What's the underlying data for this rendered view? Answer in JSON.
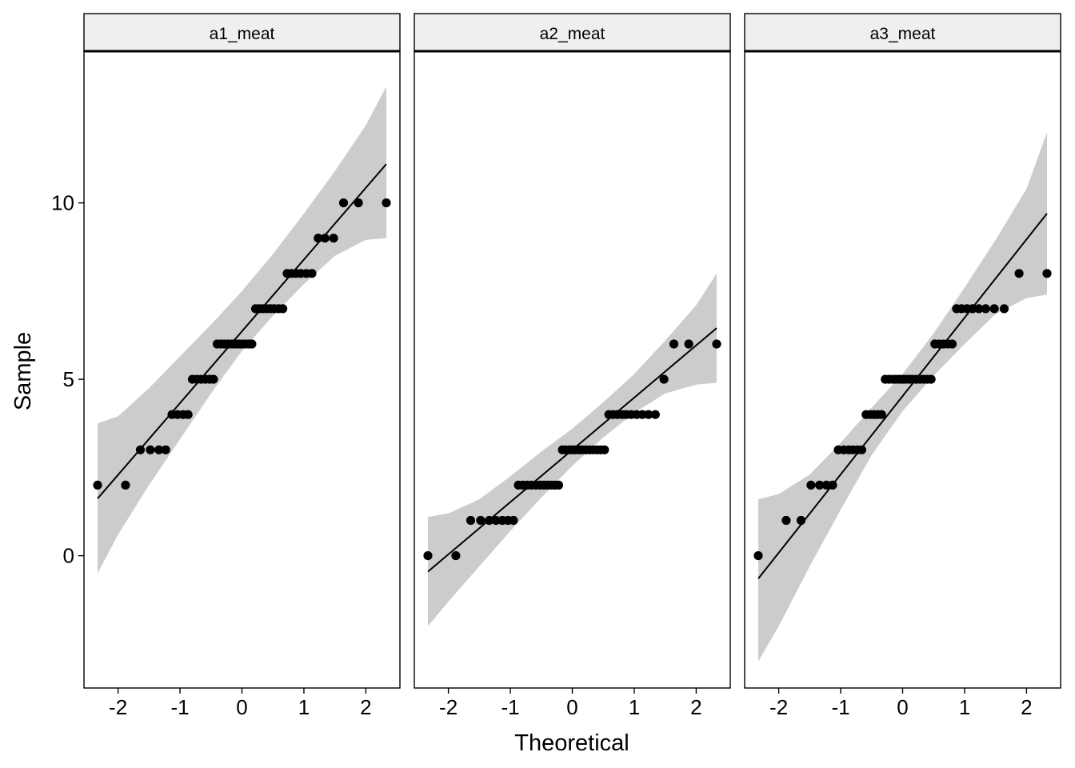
{
  "chart_data": {
    "type": "scatter",
    "subtype": "qq-plot-faceted",
    "xlabel": "Theoretical",
    "ylabel": "Sample",
    "xlim": [
      -2.55,
      2.55
    ],
    "ylim": [
      -3.75,
      14.3
    ],
    "x_ticks": [
      -2,
      -1,
      0,
      1,
      2
    ],
    "y_ticks": [
      0,
      5,
      10
    ],
    "grid": false,
    "colors": {
      "points": "#000000",
      "line": "#000000",
      "band": "#cccccc",
      "strip": "#efefef"
    },
    "panels": [
      {
        "label": "a1_meat",
        "line": {
          "x": [
            -2.33,
            2.33
          ],
          "y": [
            1.62,
            11.1
          ]
        },
        "band": {
          "x": [
            -2.33,
            -2.0,
            -1.5,
            -1.0,
            -0.5,
            0.0,
            0.5,
            1.0,
            1.5,
            2.0,
            2.33
          ],
          "lower": [
            -0.5,
            0.6,
            2.0,
            3.3,
            4.6,
            5.8,
            6.8,
            7.7,
            8.5,
            8.95,
            9.0
          ],
          "upper": [
            3.75,
            3.95,
            4.75,
            5.65,
            6.55,
            7.5,
            8.55,
            9.7,
            10.9,
            12.2,
            13.3
          ]
        },
        "points": {
          "x": [
            -2.33,
            -1.88,
            -1.64,
            -1.48,
            -1.34,
            -1.23,
            -1.13,
            -1.04,
            -0.95,
            -0.87,
            -0.8,
            -0.73,
            -0.66,
            -0.59,
            -0.52,
            -0.46,
            -0.4,
            -0.34,
            -0.28,
            -0.22,
            -0.16,
            -0.11,
            -0.05,
            0.0,
            0.05,
            0.11,
            0.16,
            0.22,
            0.28,
            0.34,
            0.4,
            0.46,
            0.52,
            0.59,
            0.66,
            0.73,
            0.8,
            0.87,
            0.95,
            1.04,
            1.13,
            1.23,
            1.34,
            1.48,
            1.64,
            1.88,
            2.33
          ],
          "y": [
            2,
            2,
            3,
            3,
            3,
            3,
            4,
            4,
            4,
            4,
            5,
            5,
            5,
            5,
            5,
            5,
            6,
            6,
            6,
            6,
            6,
            6,
            6,
            6,
            6,
            6,
            6,
            7,
            7,
            7,
            7,
            7,
            7,
            7,
            7,
            8,
            8,
            8,
            8,
            8,
            8,
            9,
            9,
            9,
            10,
            10,
            10
          ]
        }
      },
      {
        "label": "a2_meat",
        "line": {
          "x": [
            -2.33,
            2.33
          ],
          "y": [
            -0.45,
            6.45
          ]
        },
        "band": {
          "x": [
            -2.33,
            -2.0,
            -1.5,
            -1.0,
            -0.5,
            0.0,
            0.5,
            1.0,
            1.5,
            2.0,
            2.33
          ],
          "lower": [
            -2.0,
            -1.3,
            -0.3,
            0.7,
            1.65,
            2.55,
            3.35,
            4.05,
            4.6,
            4.85,
            4.9
          ],
          "upper": [
            1.1,
            1.2,
            1.6,
            2.25,
            2.95,
            3.6,
            4.35,
            5.15,
            6.1,
            7.1,
            8.0
          ]
        },
        "points": {
          "x": [
            -2.33,
            -1.88,
            -1.64,
            -1.48,
            -1.34,
            -1.23,
            -1.13,
            -1.04,
            -0.95,
            -0.87,
            -0.8,
            -0.73,
            -0.66,
            -0.59,
            -0.52,
            -0.46,
            -0.4,
            -0.34,
            -0.28,
            -0.22,
            -0.16,
            -0.11,
            -0.05,
            0.0,
            0.05,
            0.11,
            0.16,
            0.22,
            0.28,
            0.34,
            0.4,
            0.46,
            0.52,
            0.59,
            0.66,
            0.73,
            0.8,
            0.87,
            0.95,
            1.04,
            1.13,
            1.23,
            1.34,
            1.48,
            1.64,
            1.88,
            2.33
          ],
          "y": [
            0,
            0,
            1,
            1,
            1,
            1,
            1,
            1,
            1,
            2,
            2,
            2,
            2,
            2,
            2,
            2,
            2,
            2,
            2,
            2,
            3,
            3,
            3,
            3,
            3,
            3,
            3,
            3,
            3,
            3,
            3,
            3,
            3,
            4,
            4,
            4,
            4,
            4,
            4,
            4,
            4,
            4,
            4,
            5,
            6,
            6,
            6
          ]
        }
      },
      {
        "label": "a3_meat",
        "line": {
          "x": [
            -2.33,
            2.33
          ],
          "y": [
            -0.65,
            9.7
          ]
        },
        "band": {
          "x": [
            -2.33,
            -2.0,
            -1.5,
            -1.0,
            -0.5,
            0.0,
            0.5,
            1.0,
            1.5,
            2.0,
            2.33
          ],
          "lower": [
            -3.0,
            -2.0,
            -0.3,
            1.3,
            2.85,
            4.1,
            5.1,
            6.0,
            6.85,
            7.3,
            7.4
          ],
          "upper": [
            1.6,
            1.75,
            2.3,
            3.2,
            4.2,
            5.15,
            6.3,
            7.6,
            8.95,
            10.4,
            12.0
          ]
        },
        "points": {
          "x": [
            -2.33,
            -1.88,
            -1.64,
            -1.48,
            -1.34,
            -1.23,
            -1.13,
            -1.04,
            -0.95,
            -0.87,
            -0.8,
            -0.73,
            -0.66,
            -0.59,
            -0.52,
            -0.46,
            -0.4,
            -0.34,
            -0.28,
            -0.22,
            -0.16,
            -0.11,
            -0.05,
            0.0,
            0.05,
            0.11,
            0.16,
            0.22,
            0.28,
            0.34,
            0.4,
            0.46,
            0.52,
            0.59,
            0.66,
            0.73,
            0.8,
            0.87,
            0.95,
            1.04,
            1.13,
            1.23,
            1.34,
            1.48,
            1.64,
            1.88,
            2.33
          ],
          "y": [
            0,
            1,
            1,
            2,
            2,
            2,
            2,
            3,
            3,
            3,
            3,
            3,
            3,
            4,
            4,
            4,
            4,
            4,
            5,
            5,
            5,
            5,
            5,
            5,
            5,
            5,
            5,
            5,
            5,
            5,
            5,
            5,
            6,
            6,
            6,
            6,
            6,
            7,
            7,
            7,
            7,
            7,
            7,
            7,
            7,
            8,
            8
          ]
        }
      }
    ]
  }
}
